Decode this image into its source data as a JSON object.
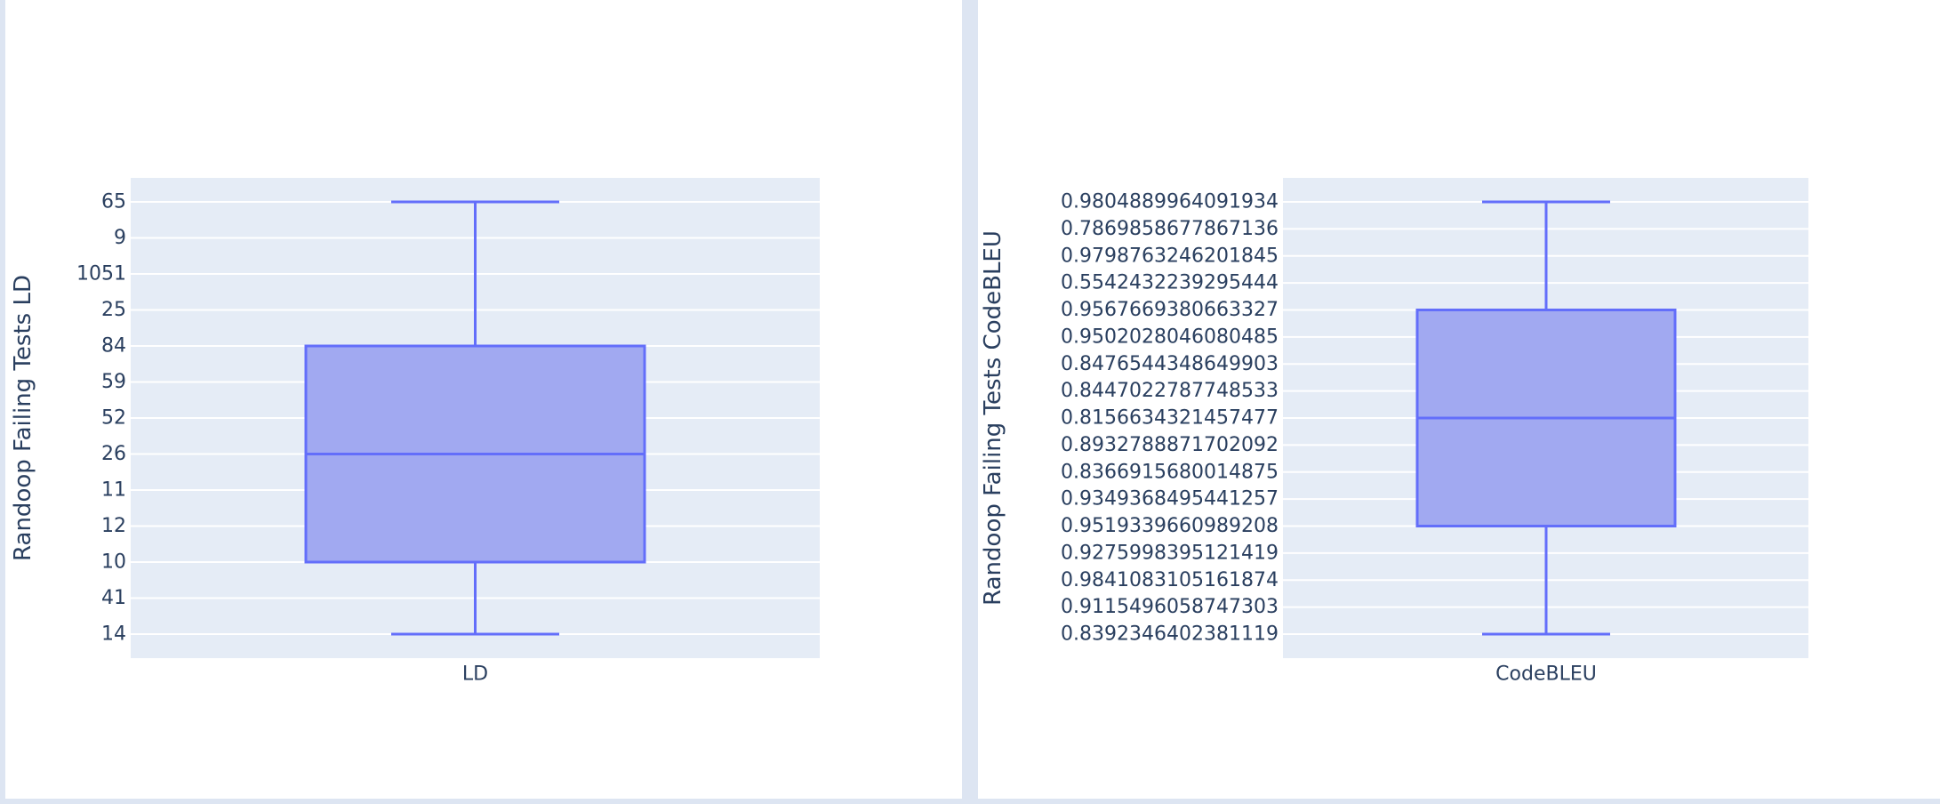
{
  "chart_data": [
    {
      "type": "box",
      "title": "",
      "xlabel": "",
      "ylabel": "Randoop Failing Tests LD",
      "categories": [
        "LD"
      ],
      "y_axis_kind": "category",
      "y_categories": [
        "14",
        "41",
        "10",
        "12",
        "11",
        "26",
        "52",
        "59",
        "84",
        "25",
        "1051",
        "9",
        "65"
      ],
      "box": {
        "name": "LD",
        "lowerfence": "14",
        "q1": "10",
        "median": "26",
        "q3": "84",
        "upperfence": "65"
      },
      "colors": {
        "fill": "#a1a9f1",
        "line": "#636efa",
        "plot_bg": "#e5ecf6",
        "grid": "#ffffff",
        "text": "#2a3f5f"
      }
    },
    {
      "type": "box",
      "title": "",
      "xlabel": "",
      "ylabel": "Randoop Failing Tests CodeBLEU",
      "categories": [
        "CodeBLEU"
      ],
      "y_axis_kind": "category",
      "y_categories": [
        "0.8392346402381119",
        "0.9115496058747303",
        "0.9841083105161874",
        "0.9275998395121419",
        "0.9519339660989208",
        "0.9349368495441257",
        "0.8366915680014875",
        "0.8932788871702092",
        "0.8156634321457477",
        "0.8447022787748533",
        "0.8476544348649903",
        "0.9502028046080485",
        "0.9567669380663327",
        "0.5542432239295444",
        "0.9798763246201845",
        "0.7869858677867136",
        "0.9804889964091934"
      ],
      "box": {
        "name": "CodeBLEU",
        "lowerfence": "0.8392346402381119",
        "q1": "0.9519339660989208",
        "median": "0.8156634321457477",
        "q3": "0.9567669380663327",
        "upperfence": "0.9804889964091934"
      },
      "colors": {
        "fill": "#a1a9f1",
        "line": "#636efa",
        "plot_bg": "#e5ecf6",
        "grid": "#ffffff",
        "text": "#2a3f5f"
      }
    }
  ]
}
